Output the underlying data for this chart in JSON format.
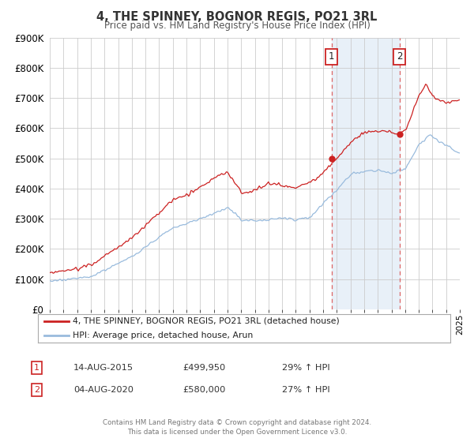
{
  "title": "4, THE SPINNEY, BOGNOR REGIS, PO21 3RL",
  "subtitle": "Price paid vs. HM Land Registry's House Price Index (HPI)",
  "legend_label_red": "4, THE SPINNEY, BOGNOR REGIS, PO21 3RL (detached house)",
  "legend_label_blue": "HPI: Average price, detached house, Arun",
  "annotation_1_date": "14-AUG-2015",
  "annotation_1_price": "£499,950",
  "annotation_1_hpi": "29% ↑ HPI",
  "annotation_2_date": "04-AUG-2020",
  "annotation_2_price": "£580,000",
  "annotation_2_hpi": "27% ↑ HPI",
  "footer_line1": "Contains HM Land Registry data © Crown copyright and database right 2024.",
  "footer_line2": "This data is licensed under the Open Government Licence v3.0.",
  "color_red": "#cc2222",
  "color_blue": "#99bbdd",
  "color_vline": "#dd6666",
  "color_shade": "#e8f0f8",
  "ylim": [
    0,
    900000
  ],
  "yticks": [
    0,
    100000,
    200000,
    300000,
    400000,
    500000,
    600000,
    700000,
    800000,
    900000
  ],
  "xlim_start": 1995,
  "xlim_end": 2025,
  "sale1_year": 2015.619,
  "sale1_price": 499950,
  "sale2_year": 2020.586,
  "sale2_price": 580000,
  "background_color": "#ffffff",
  "grid_color": "#cccccc",
  "title_color": "#333333",
  "subtitle_color": "#555555",
  "box_label_color": "#222222"
}
